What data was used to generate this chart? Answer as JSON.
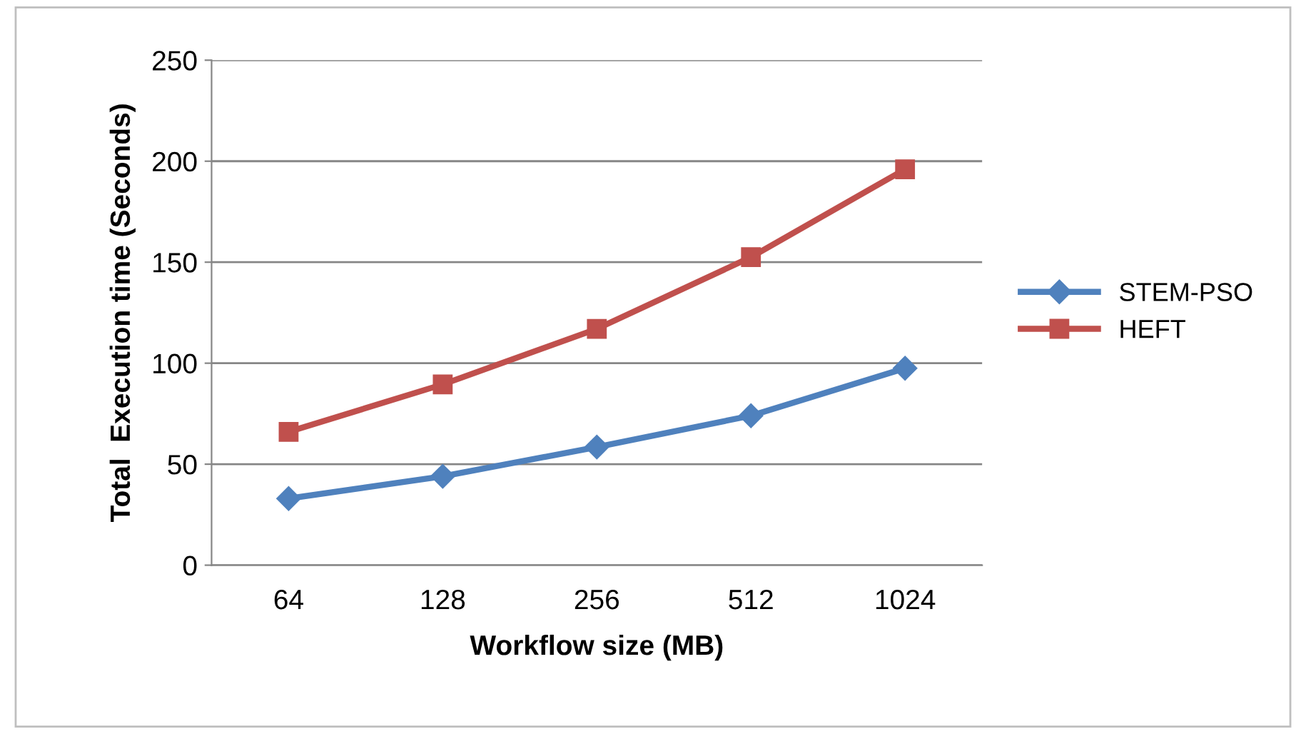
{
  "chart_data": {
    "type": "line",
    "xlabel": "Workflow size (MB)",
    "ylabel": "Total  Execution time (Seconds)",
    "categories": [
      "64",
      "128",
      "256",
      "512",
      "1024"
    ],
    "series": [
      {
        "name": "STEM-PSO",
        "color": "#4f81bd",
        "marker": "diamond",
        "values": [
          33,
          44,
          58.5,
          74,
          97.5
        ]
      },
      {
        "name": "HEFT",
        "color": "#c0504d",
        "marker": "square",
        "values": [
          66,
          89.5,
          117,
          152.5,
          196
        ]
      }
    ],
    "ylim": [
      0,
      250
    ],
    "yticks": [
      0,
      50,
      100,
      150,
      200,
      250
    ],
    "grid": "y",
    "legend": "right",
    "line_style": "solid"
  }
}
